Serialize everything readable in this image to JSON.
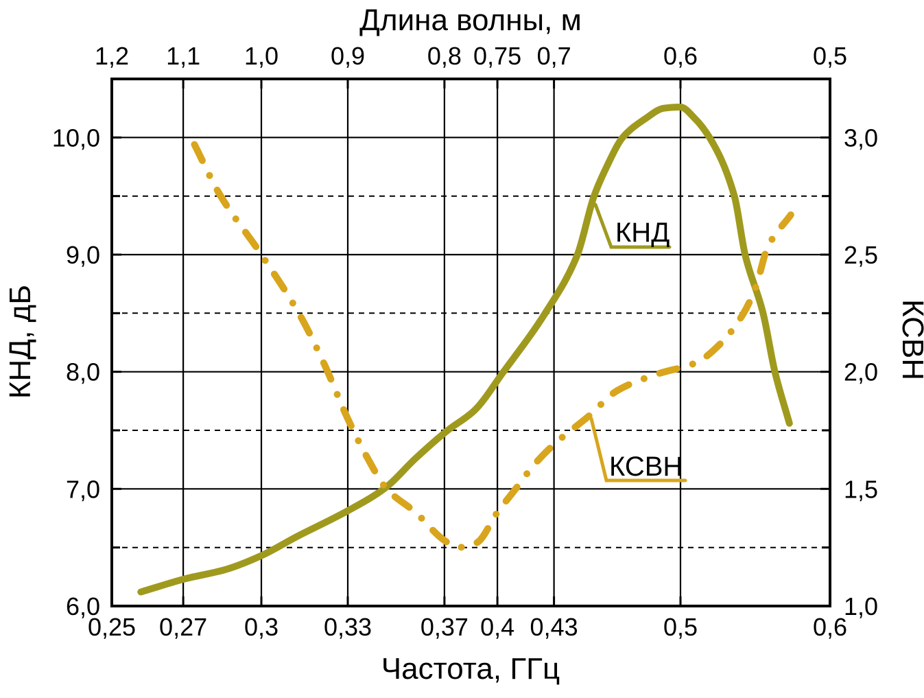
{
  "chart_data": {
    "type": "line",
    "background": "#ffffff",
    "axis_color": "#000000",
    "x_axis": {
      "label": "Частота, ГГц",
      "scale": "log",
      "min": 0.25,
      "max": 0.6,
      "ticks": [
        {
          "value": 0.25,
          "label": "0,25"
        },
        {
          "value": 0.272727,
          "label": "0,27"
        },
        {
          "value": 0.3,
          "label": "0,3"
        },
        {
          "value": 0.333333,
          "label": "0,33"
        },
        {
          "value": 0.375,
          "label": "0,37"
        },
        {
          "value": 0.4,
          "label": "0,4"
        },
        {
          "value": 0.428571,
          "label": "0,43"
        },
        {
          "value": 0.5,
          "label": "0,5"
        },
        {
          "value": 0.6,
          "label": "0,6"
        }
      ],
      "gridlines": "solid at interior ticks"
    },
    "top_axis": {
      "label": "Длина волны, м",
      "relation": "wavelength_m = 0.3 / frequency_GHz",
      "ticks": [
        {
          "value": 0.25,
          "label": "1,2"
        },
        {
          "value": 0.272727,
          "label": "1,1"
        },
        {
          "value": 0.3,
          "label": "1,0"
        },
        {
          "value": 0.333333,
          "label": "0,9"
        },
        {
          "value": 0.375,
          "label": "0,8"
        },
        {
          "value": 0.4,
          "label": "0,75"
        },
        {
          "value": 0.428571,
          "label": "0,7"
        },
        {
          "value": 0.5,
          "label": "0,6"
        },
        {
          "value": 0.6,
          "label": "0,5"
        }
      ]
    },
    "y_left": {
      "label": "КНД, дБ",
      "min": 6.0,
      "max": 10.5,
      "major_ticks": [
        {
          "value": 6,
          "label": "6,0"
        },
        {
          "value": 7,
          "label": "7,0"
        },
        {
          "value": 8,
          "label": "8,0"
        },
        {
          "value": 9,
          "label": "9,0"
        },
        {
          "value": 10,
          "label": "10,0"
        }
      ],
      "minor_ticks": [
        6.5,
        7.5,
        8.5,
        9.5
      ],
      "minor_gridline_style": "dashed"
    },
    "y_right": {
      "label": "КСВН",
      "min": 1.0,
      "max": 3.25,
      "major_ticks": [
        {
          "value": 1,
          "label": "1,0"
        },
        {
          "value": 1.5,
          "label": "1,5"
        },
        {
          "value": 2,
          "label": "2,0"
        },
        {
          "value": 2.5,
          "label": "2,5"
        },
        {
          "value": 3,
          "label": "3,0"
        }
      ],
      "minor_ticks": [
        1.25,
        1.75,
        2.25,
        2.75
      ]
    },
    "series": [
      {
        "name": "КНД",
        "axis": "left",
        "color": "#9f9a1e",
        "style": "solid",
        "points": [
          [
            0.259,
            6.12
          ],
          [
            0.273,
            6.23
          ],
          [
            0.287,
            6.31
          ],
          [
            0.3,
            6.43
          ],
          [
            0.313,
            6.59
          ],
          [
            0.333,
            6.81
          ],
          [
            0.349,
            7.01
          ],
          [
            0.362,
            7.26
          ],
          [
            0.3765,
            7.5
          ],
          [
            0.389,
            7.67
          ],
          [
            0.403,
            8.0
          ],
          [
            0.424,
            8.5
          ],
          [
            0.441,
            9.0
          ],
          [
            0.45,
            9.5
          ],
          [
            0.457,
            9.75
          ],
          [
            0.466,
            10.0
          ],
          [
            0.479,
            10.16
          ],
          [
            0.49,
            10.25
          ],
          [
            0.5,
            10.26
          ],
          [
            0.509,
            10.16
          ],
          [
            0.518,
            10.0
          ],
          [
            0.534,
            9.5
          ],
          [
            0.541,
            9.0
          ],
          [
            0.553,
            8.5
          ],
          [
            0.561,
            8.0
          ],
          [
            0.571,
            7.56
          ]
        ]
      },
      {
        "name": "КСВН",
        "axis": "right",
        "color": "#d8a51c",
        "style": "dash-dot",
        "points": [
          [
            0.2765,
            2.97
          ],
          [
            0.285,
            2.76
          ],
          [
            0.3,
            2.5
          ],
          [
            0.315,
            2.23
          ],
          [
            0.324,
            2.03
          ],
          [
            0.3333,
            1.8
          ],
          [
            0.341,
            1.64
          ],
          [
            0.3495,
            1.5
          ],
          [
            0.362,
            1.4
          ],
          [
            0.375,
            1.28
          ],
          [
            0.381,
            1.25
          ],
          [
            0.39,
            1.27
          ],
          [
            0.4,
            1.4
          ],
          [
            0.409,
            1.5
          ],
          [
            0.418,
            1.6
          ],
          [
            0.4286,
            1.69
          ],
          [
            0.447,
            1.81
          ],
          [
            0.463,
            1.92
          ],
          [
            0.486,
            1.99
          ],
          [
            0.51,
            2.04
          ],
          [
            0.525,
            2.12
          ],
          [
            0.54,
            2.25
          ],
          [
            0.548,
            2.36
          ],
          [
            0.556,
            2.53
          ],
          [
            0.572,
            2.67
          ]
        ]
      }
    ],
    "grid": true,
    "legend_position": "inline callout labels on curves"
  }
}
